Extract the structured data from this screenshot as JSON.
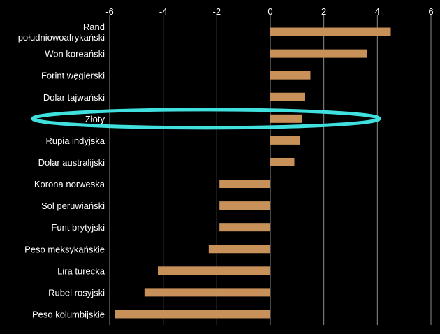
{
  "chart_data": {
    "type": "bar",
    "orientation": "horizontal",
    "categories": [
      [
        "Rand",
        "południowoafrykański"
      ],
      [
        "Won koreański"
      ],
      [
        "Forint węgierski"
      ],
      [
        "Dolar tajwański"
      ],
      [
        "Złoty"
      ],
      [
        "Rupia indyjska"
      ],
      [
        "Dolar australijski"
      ],
      [
        "Korona norweska"
      ],
      [
        "Sol peruwiański"
      ],
      [
        "Funt brytyjski"
      ],
      [
        "Peso meksykańskie"
      ],
      [
        "Lira turecka"
      ],
      [
        "Rubel rosyjski"
      ],
      [
        "Peso kolumbijskie"
      ]
    ],
    "values": [
      4.5,
      3.6,
      1.5,
      1.3,
      1.2,
      1.1,
      0.9,
      -1.9,
      -1.9,
      -1.9,
      -2.3,
      -4.2,
      -4.7,
      -5.8
    ],
    "xlim": [
      -6,
      6
    ],
    "xticks": [
      -6,
      -4,
      -2,
      0,
      2,
      4,
      6
    ],
    "grid": true,
    "bar_color": "#c8915a",
    "highlight": {
      "category_index": 4,
      "color": "#3fe0dd"
    }
  }
}
